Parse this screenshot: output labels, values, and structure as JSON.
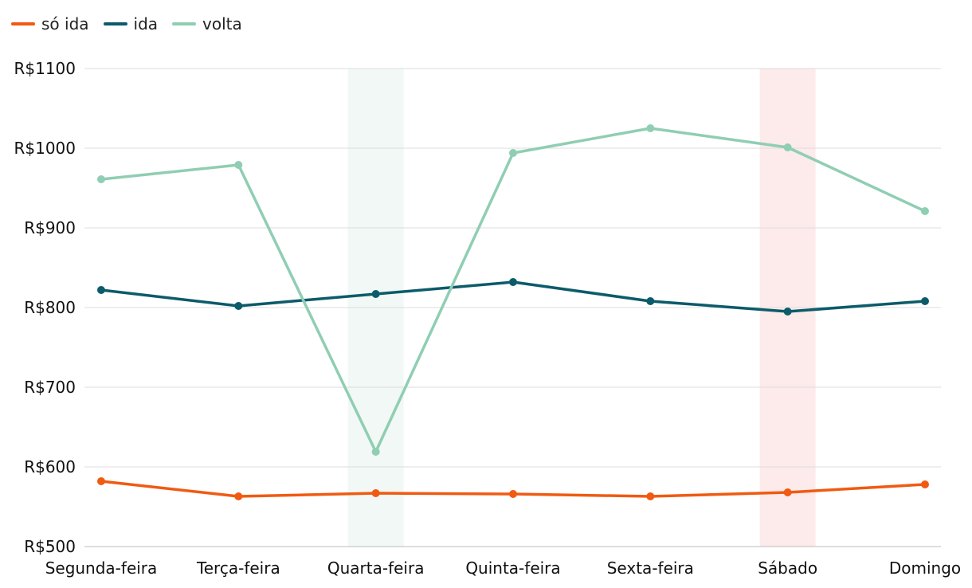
{
  "chart_data": {
    "type": "line",
    "title": "",
    "xlabel": "",
    "ylabel": "",
    "categories": [
      "Segunda-feira",
      "Terça-feira",
      "Quarta-feira",
      "Quinta-feira",
      "Sexta-feira",
      "Sábado",
      "Domingo"
    ],
    "ylim": [
      500,
      1100
    ],
    "yticks": [
      500,
      600,
      700,
      800,
      900,
      1000,
      1100
    ],
    "ytick_labels": [
      "R$500",
      "R$600",
      "R$700",
      "R$800",
      "R$900",
      "R$1000",
      "R$1100"
    ],
    "grid": true,
    "legend_position": "top-left",
    "highlight_bands": [
      {
        "category": "Quarta-feira",
        "color": "#f1f8f5"
      },
      {
        "category": "Sábado",
        "color": "#fdeaea"
      }
    ],
    "series": [
      {
        "name": "só ida",
        "color": "#f05a12",
        "values": [
          582,
          563,
          567,
          566,
          563,
          568,
          578
        ]
      },
      {
        "name": "ida",
        "color": "#0c5b6a",
        "values": [
          822,
          802,
          817,
          832,
          808,
          795,
          808
        ]
      },
      {
        "name": "volta",
        "color": "#8fceb3",
        "values": [
          961,
          979,
          619,
          994,
          1025,
          1001,
          921
        ]
      }
    ]
  }
}
